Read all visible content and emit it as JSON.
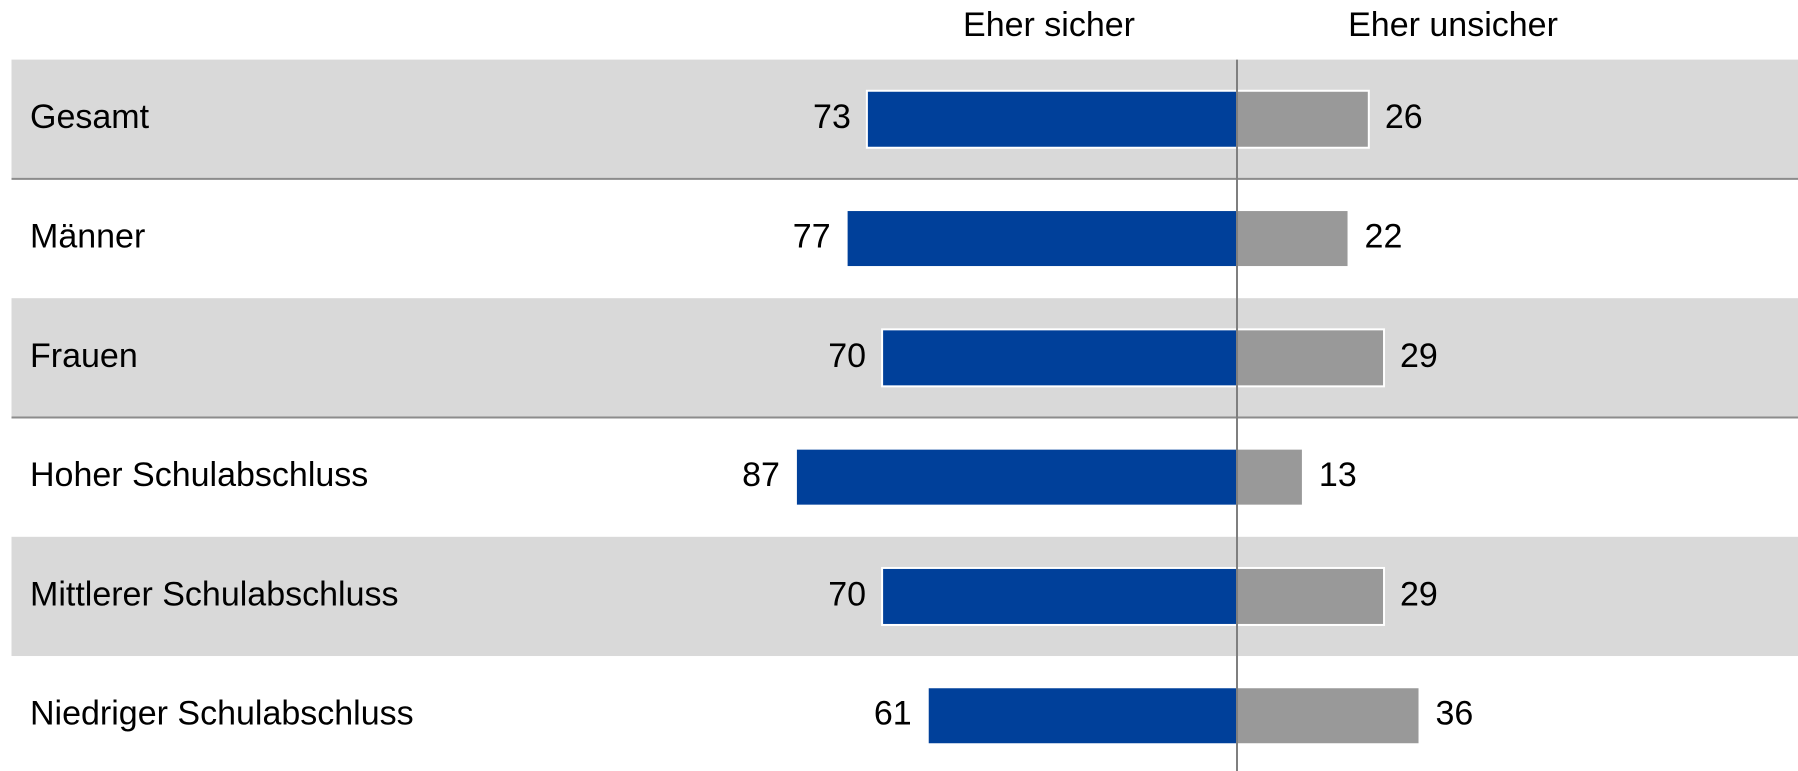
{
  "chart_data": {
    "type": "diverging_bar",
    "categories": [
      "Gesamt",
      "Männer",
      "Frauen",
      "Hoher Schulabschluss",
      "Mittlerer Schulabschluss",
      "Niedriger Schulabschluss"
    ],
    "series": [
      {
        "name": "Eher sicher",
        "color": "#00409a",
        "values": [
          73,
          77,
          70,
          87,
          70,
          61
        ]
      },
      {
        "name": "Eher unsicher",
        "color": "#999999",
        "values": [
          26,
          22,
          29,
          13,
          29,
          36
        ]
      }
    ]
  }
}
